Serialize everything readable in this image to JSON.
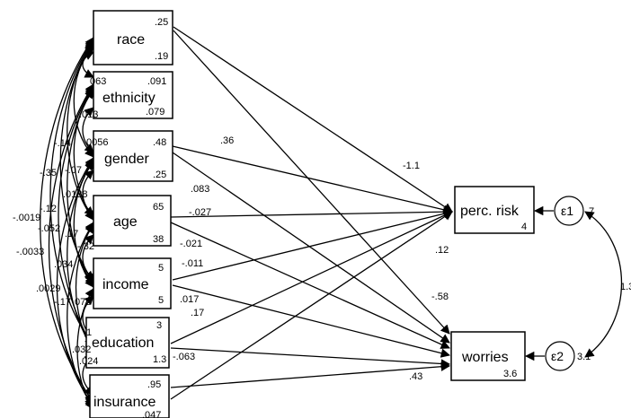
{
  "nodes": {
    "race": {
      "label": "race",
      "mean": ".25",
      "var": ".19"
    },
    "ethnicity": {
      "label": "ethnicity",
      "mean": ".091",
      "var": ".079"
    },
    "gender": {
      "label": "gender",
      "mean": ".48",
      "var": ".25"
    },
    "age": {
      "label": "age",
      "mean": "65",
      "var": "38"
    },
    "income": {
      "label": "income",
      "mean": "5",
      "var": "5"
    },
    "education": {
      "label": "education",
      "mean": "3",
      "var": "1.3"
    },
    "insurance": {
      "label": "insurance",
      "mean": ".95",
      "var": ".047"
    },
    "risk": {
      "label": "perc. risk",
      "intercept": "4"
    },
    "worries": {
      "label": "worries",
      "intercept": "3.6"
    }
  },
  "errors": {
    "e1": {
      "label": "ε1",
      "variance": "7"
    },
    "e2": {
      "label": "ε2",
      "variance": "3.1"
    },
    "cov": "1.3"
  },
  "paths": {
    "gender_risk": ".36",
    "race_risk": "-1.1",
    "gender_worries": ".083",
    "age_risk": "-.027",
    "age_worries": "-.021",
    "income_risk": "-.011",
    "income_worries": ".017",
    "education_risk": ".17",
    "race_worries": ".12",
    "education_worries": "-.063",
    "insurance_risk": "-.58",
    "insurance_worries": ".43"
  },
  "covariances": {
    "c1": "063",
    "c2": ".013",
    "c3": ".0056",
    "c4": "-.14",
    "c5": "-.07",
    "c6": "-.35",
    "c7": ".0138",
    "c8": "-.12",
    "c9": ".17",
    "c10": "-.32",
    "c11": "-.0019",
    "c12": "-.052",
    "c13": ".034",
    "c14": "-.0033",
    "c15": ".0029",
    "c16": "-.17",
    "c17": ".073",
    "c18": "1",
    "c19": ".032",
    "c20": ".024"
  }
}
